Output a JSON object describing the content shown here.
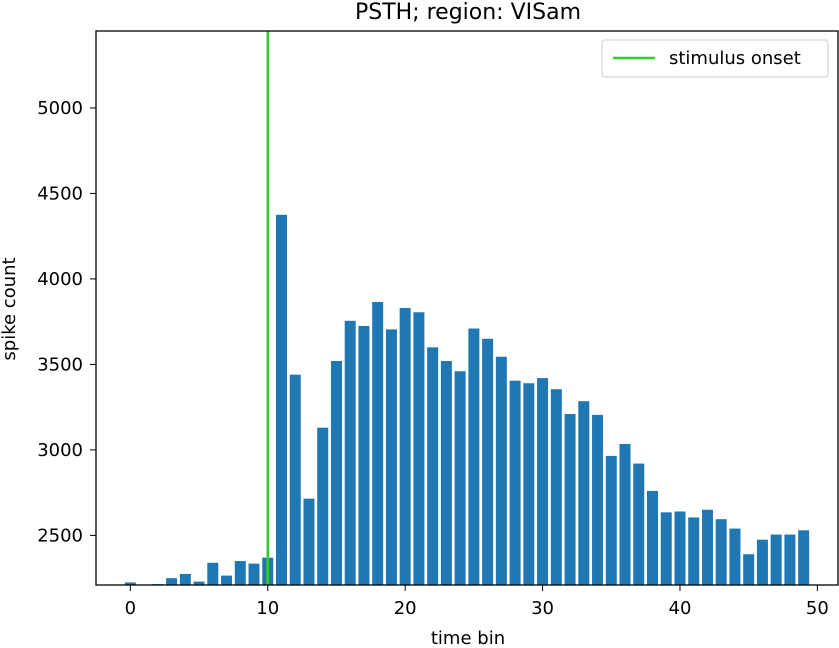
{
  "chart_data": {
    "type": "bar",
    "title": "PSTH; region: VISam",
    "xlabel": "time bin",
    "ylabel": "spike count",
    "xlim": [
      -2.5,
      51.5
    ],
    "ylim": [
      2210,
      5450
    ],
    "x_ticks": [
      0,
      10,
      20,
      30,
      40,
      50
    ],
    "y_ticks": [
      2500,
      3000,
      3500,
      4000,
      4500,
      5000
    ],
    "x": [
      0,
      1,
      2,
      3,
      4,
      5,
      6,
      7,
      8,
      9,
      10,
      11,
      12,
      13,
      14,
      15,
      16,
      17,
      18,
      19,
      20,
      21,
      22,
      23,
      24,
      25,
      26,
      27,
      28,
      29,
      30,
      31,
      32,
      33,
      34,
      35,
      36,
      37,
      38,
      39,
      40,
      41,
      42,
      43,
      44,
      45,
      46,
      47,
      48,
      49
    ],
    "values": [
      2225,
      2205,
      2215,
      2250,
      2275,
      2230,
      2340,
      2265,
      2350,
      2335,
      2370,
      4375,
      3440,
      2715,
      3130,
      3520,
      3755,
      3725,
      3865,
      3705,
      3830,
      3805,
      3600,
      3520,
      3460,
      3710,
      3650,
      3545,
      3405,
      3390,
      3420,
      3355,
      3210,
      3285,
      3205,
      2965,
      3035,
      2920,
      2760,
      2635,
      2640,
      2605,
      2650,
      2595,
      2540,
      2390,
      2475,
      2505,
      2505,
      2530
    ],
    "bar_color": "#1f77b4",
    "stimulus_onset_x": 10,
    "onset_color": "#32cd32",
    "legend": {
      "position": "top-right",
      "entries": [
        {
          "label": "stimulus onset",
          "color": "#32cd32"
        }
      ]
    },
    "grid": false
  }
}
